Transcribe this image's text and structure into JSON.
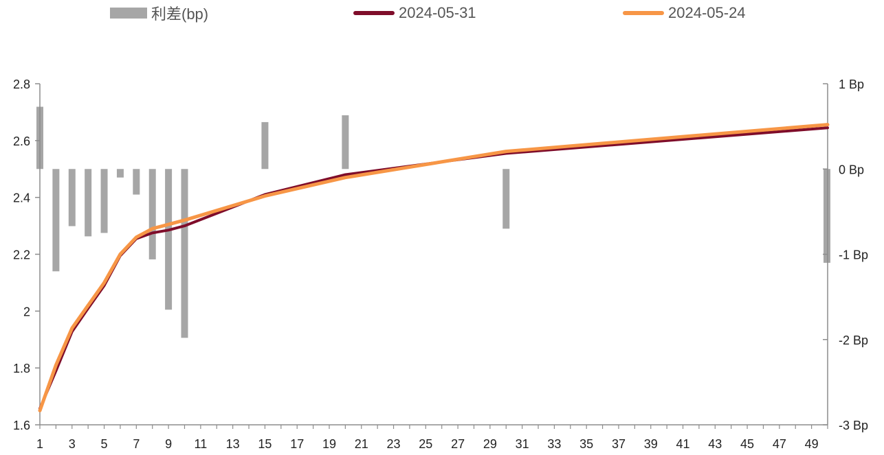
{
  "chart_data": {
    "type": "bar+line",
    "x_ticks": [
      1,
      3,
      5,
      7,
      9,
      11,
      13,
      15,
      17,
      19,
      21,
      23,
      25,
      27,
      29,
      31,
      33,
      35,
      37,
      39,
      41,
      43,
      45,
      47,
      49
    ],
    "xlim": [
      1,
      50
    ],
    "left_axis": {
      "ylim": [
        1.6,
        2.8
      ],
      "ticks": [
        "1.6",
        "1.8",
        "2",
        "2.2",
        "2.4",
        "2.6",
        "2.8"
      ],
      "tick_values": [
        1.6,
        1.8,
        2.0,
        2.2,
        2.4,
        2.6,
        2.8
      ]
    },
    "right_axis": {
      "ylim": [
        -3,
        1
      ],
      "ticks": [
        "-3 Bp",
        "-2 Bp",
        "-1 Bp",
        "0 Bp",
        "1 Bp"
      ],
      "tick_values": [
        -3,
        -2,
        -1,
        0,
        1
      ]
    },
    "legend_position": "top",
    "series": [
      {
        "name": "利差(bp)",
        "kind": "bar",
        "axis": "right",
        "color": "#a6a6a6",
        "x": [
          1,
          2,
          3,
          4,
          5,
          6,
          7,
          8,
          9,
          10,
          15,
          20,
          30,
          50
        ],
        "values": [
          0.73,
          -1.2,
          -0.67,
          -0.79,
          -0.75,
          -0.1,
          -0.3,
          -1.06,
          -1.65,
          -1.98,
          0.55,
          0.63,
          -0.7,
          -1.1
        ]
      },
      {
        "name": "2024-05-31",
        "kind": "line",
        "axis": "left",
        "color": "#7f0d2a",
        "x": [
          1,
          2,
          3,
          4,
          5,
          6,
          7,
          8,
          9,
          10,
          15,
          20,
          30,
          50
        ],
        "values": [
          1.657,
          1.79,
          1.928,
          2.01,
          2.09,
          2.195,
          2.255,
          2.275,
          2.285,
          2.3,
          2.41,
          2.48,
          2.555,
          2.645
        ]
      },
      {
        "name": "2024-05-24",
        "kind": "line",
        "axis": "left",
        "color": "#f79646",
        "x": [
          1,
          2,
          3,
          4,
          5,
          6,
          7,
          8,
          9,
          10,
          15,
          20,
          30,
          50
        ],
        "values": [
          1.65,
          1.81,
          1.94,
          2.02,
          2.1,
          2.2,
          2.26,
          2.29,
          2.305,
          2.32,
          2.405,
          2.47,
          2.562,
          2.656
        ]
      }
    ]
  }
}
